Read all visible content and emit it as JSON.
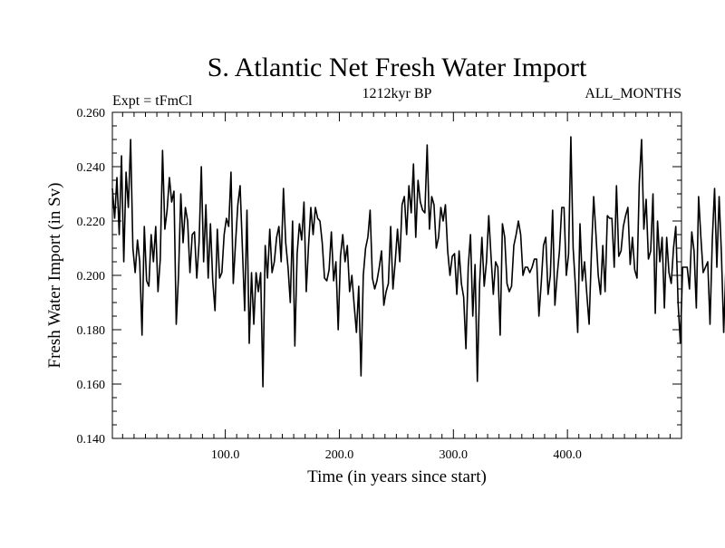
{
  "chart_data": {
    "type": "line",
    "title": "S. Atlantic Net Fresh Water Import",
    "subtitle": "1212kyr BP",
    "left_note": "Expt = tFmCl",
    "right_note": "ALL_MONTHS",
    "xlabel": "Time (in years since start)",
    "ylabel": "Fresh Water Import (in Sv)",
    "xlim": [
      1,
      500
    ],
    "ylim": [
      0.14,
      0.26
    ],
    "x_tick_values": [
      100,
      200,
      300,
      400
    ],
    "x_tick_labels": [
      "100.0",
      "200.0",
      "300.0",
      "400.0"
    ],
    "y_tick_values": [
      0.14,
      0.16,
      0.18,
      0.2,
      0.22,
      0.24,
      0.26
    ],
    "y_tick_labels": [
      "0.140",
      "0.160",
      "0.180",
      "0.200",
      "0.220",
      "0.240",
      "0.260"
    ],
    "grid": false,
    "series": [
      {
        "name": "Fresh Water Import",
        "color": "#000000",
        "x_start": 1,
        "x_step": 2,
        "values": [
          0.232,
          0.221,
          0.236,
          0.215,
          0.244,
          0.205,
          0.238,
          0.225,
          0.25,
          0.21,
          0.201,
          0.213,
          0.205,
          0.178,
          0.218,
          0.198,
          0.196,
          0.215,
          0.205,
          0.218,
          0.194,
          0.206,
          0.246,
          0.217,
          0.224,
          0.236,
          0.227,
          0.231,
          0.182,
          0.2,
          0.23,
          0.212,
          0.225,
          0.22,
          0.201,
          0.215,
          0.216,
          0.199,
          0.212,
          0.24,
          0.205,
          0.226,
          0.199,
          0.219,
          0.198,
          0.187,
          0.217,
          0.199,
          0.201,
          0.215,
          0.221,
          0.218,
          0.238,
          0.197,
          0.212,
          0.226,
          0.233,
          0.21,
          0.187,
          0.224,
          0.175,
          0.201,
          0.182,
          0.201,
          0.194,
          0.201,
          0.159,
          0.211,
          0.199,
          0.217,
          0.201,
          0.205,
          0.214,
          0.218,
          0.205,
          0.232,
          0.212,
          0.203,
          0.19,
          0.22,
          0.174,
          0.208,
          0.219,
          0.213,
          0.227,
          0.194,
          0.211,
          0.225,
          0.215,
          0.225,
          0.221,
          0.22,
          0.212,
          0.199,
          0.198,
          0.202,
          0.216,
          0.198,
          0.205,
          0.18,
          0.207,
          0.215,
          0.205,
          0.211,
          0.194,
          0.2,
          0.189,
          0.179,
          0.196,
          0.163,
          0.2,
          0.21,
          0.214,
          0.224,
          0.199,
          0.195,
          0.198,
          0.203,
          0.209,
          0.189,
          0.194,
          0.197,
          0.218,
          0.195,
          0.205,
          0.217,
          0.205,
          0.226,
          0.229,
          0.215,
          0.233,
          0.223,
          0.241,
          0.214,
          0.235,
          0.227,
          0.224,
          0.223,
          0.248,
          0.217,
          0.229,
          0.226,
          0.21,
          0.214,
          0.225,
          0.22,
          0.226,
          0.209,
          0.2,
          0.207,
          0.208,
          0.193,
          0.209,
          0.197,
          0.192,
          0.173,
          0.203,
          0.215,
          0.185,
          0.204,
          0.161,
          0.197,
          0.214,
          0.196,
          0.205,
          0.222,
          0.207,
          0.193,
          0.205,
          0.203,
          0.178,
          0.219,
          0.214,
          0.197,
          0.194,
          0.196,
          0.211,
          0.215,
          0.22,
          0.215,
          0.2,
          0.203,
          0.203,
          0.201,
          0.203,
          0.206,
          0.206,
          0.185,
          0.197,
          0.211,
          0.214,
          0.193,
          0.2,
          0.224,
          0.189,
          0.2,
          0.209,
          0.225,
          0.225,
          0.2,
          0.208,
          0.251,
          0.21,
          0.196,
          0.179,
          0.219,
          0.198,
          0.205,
          0.193,
          0.182,
          0.208,
          0.229,
          0.215,
          0.2,
          0.193,
          0.211,
          0.194,
          0.222,
          0.221,
          0.221,
          0.203,
          0.233,
          0.207,
          0.209,
          0.218,
          0.222,
          0.225,
          0.204,
          0.214,
          0.202,
          0.199,
          0.234,
          0.25,
          0.217,
          0.228,
          0.206,
          0.209,
          0.23,
          0.186,
          0.22,
          0.205,
          0.214,
          0.188,
          0.214,
          0.201,
          0.197,
          0.21,
          0.218,
          0.19,
          0.175,
          0.203,
          0.203,
          0.203,
          0.195,
          0.216,
          0.209,
          0.188,
          0.229,
          0.214,
          0.201,
          0.203,
          0.205,
          0.182,
          0.213,
          0.232,
          0.203,
          0.229,
          0.208,
          0.179,
          0.204,
          0.208,
          0.188,
          0.198,
          0.206,
          0.214,
          0.195,
          0.169,
          0.205,
          0.229,
          0.213,
          0.213,
          0.197,
          0.196,
          0.181,
          0.202,
          0.206,
          0.191,
          0.208,
          0.21,
          0.196,
          0.226,
          0.214,
          0.214,
          0.232,
          0.215,
          0.226,
          0.226,
          0.224,
          0.211,
          0.21,
          0.199,
          0.218,
          0.196,
          0.171,
          0.208,
          0.192,
          0.221,
          0.225,
          0.21,
          0.184,
          0.208,
          0.184,
          0.214,
          0.197,
          0.221,
          0.211,
          0.199,
          0.191,
          0.206,
          0.214,
          0.213,
          0.211,
          0.202,
          0.209,
          0.194,
          0.168,
          0.216,
          0.197,
          0.223,
          0.207,
          0.201,
          0.186,
          0.182,
          0.215,
          0.211,
          0.213,
          0.194,
          0.233,
          0.201,
          0.208,
          0.193,
          0.208,
          0.205,
          0.186,
          0.21,
          0.188,
          0.204,
          0.196,
          0.179,
          0.202,
          0.218,
          0.21,
          0.195,
          0.205,
          0.199,
          0.22,
          0.207,
          0.199,
          0.203,
          0.214,
          0.216,
          0.203,
          0.205,
          0.208,
          0.216,
          0.213,
          0.213,
          0.195,
          0.211,
          0.196,
          0.193,
          0.218,
          0.206,
          0.214,
          0.231,
          0.209,
          0.197,
          0.227,
          0.217,
          0.199,
          0.197,
          0.198,
          0.206,
          0.238,
          0.226,
          0.235,
          0.215,
          0.214,
          0.219,
          0.223,
          0.24,
          0.23,
          0.217,
          0.23,
          0.217,
          0.222,
          0.212,
          0.228,
          0.23,
          0.2,
          0.231,
          0.242,
          0.221,
          0.219,
          0.218,
          0.228,
          0.227,
          0.254,
          0.245,
          0.225,
          0.219,
          0.22,
          0.258,
          0.23,
          0.203,
          0.221,
          0.244,
          0.238,
          0.241,
          0.25,
          0.226,
          0.217,
          0.247,
          0.225,
          0.224,
          0.217,
          0.236,
          0.223,
          0.21,
          0.202,
          0.205,
          0.22,
          0.208,
          0.201,
          0.206,
          0.205,
          0.215
        ]
      }
    ]
  }
}
